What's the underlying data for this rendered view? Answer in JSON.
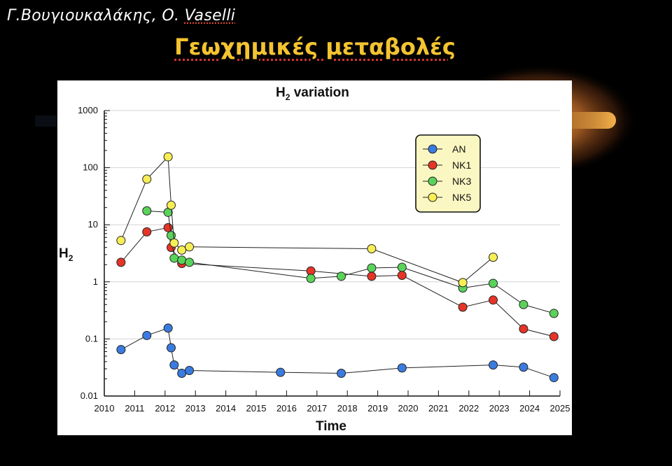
{
  "slide": {
    "author_initial": "Γ.Βουγιουκαλάκης, Ο. ",
    "author_underlined": "Vaselli",
    "title": "Γεωχημικές μεταβολές"
  },
  "colors": {
    "background": "#000000",
    "title": "#f4c430",
    "glow": "#f2a93b"
  },
  "chart_data": {
    "type": "line",
    "title_main": "H",
    "title_sub": "2",
    "title_rest": " variation",
    "xlabel": "Time",
    "ylabel_main": "H",
    "ylabel_sub": "2",
    "xlim": [
      2010,
      2025
    ],
    "ylim": [
      0.01,
      1000
    ],
    "yscale": "log",
    "grid": "horizontal",
    "legend_position": "top-right",
    "x_ticks": [
      "2010",
      "2011",
      "2012",
      "2013",
      "2014",
      "2015",
      "2016",
      "2017",
      "2018",
      "2019",
      "2020",
      "2021",
      "2022",
      "2023",
      "2024",
      "2025"
    ],
    "y_ticks": [
      {
        "value": 1000,
        "label": "1000"
      },
      {
        "value": 100,
        "label": "100"
      },
      {
        "value": 10,
        "label": "10"
      },
      {
        "value": 1,
        "label": "1"
      },
      {
        "value": 0.1,
        "label": "0.1"
      },
      {
        "value": 0.01,
        "label": "0.01"
      }
    ],
    "series": [
      {
        "name": "AN",
        "color": "#3a7be0",
        "x": [
          2010.55,
          2011.4,
          2012.1,
          2012.2,
          2012.3,
          2012.55,
          2012.8,
          2015.8,
          2017.8,
          2019.8,
          2022.8,
          2023.8,
          2024.8
        ],
        "y": [
          0.065,
          0.115,
          0.155,
          0.07,
          0.035,
          0.025,
          0.028,
          0.026,
          0.025,
          0.031,
          0.035,
          0.032,
          0.021
        ]
      },
      {
        "name": "NK1",
        "color": "#e53527",
        "x": [
          2010.55,
          2011.4,
          2012.1,
          2012.2,
          2012.55,
          2016.8,
          2018.8,
          2019.8,
          2021.8,
          2022.8,
          2023.8,
          2024.8
        ],
        "y": [
          2.2,
          7.5,
          8.9,
          4.0,
          2.1,
          1.55,
          1.25,
          1.3,
          0.36,
          0.48,
          0.15,
          0.11
        ]
      },
      {
        "name": "NK3",
        "color": "#5ad35a",
        "x": [
          2011.4,
          2012.1,
          2012.2,
          2012.3,
          2012.55,
          2012.8,
          2016.8,
          2017.8,
          2018.8,
          2019.8,
          2021.8,
          2022.8,
          2023.8,
          2024.8
        ],
        "y": [
          17.5,
          16.5,
          6.5,
          2.6,
          2.4,
          2.2,
          1.15,
          1.25,
          1.75,
          1.8,
          0.78,
          0.94,
          0.4,
          0.28
        ]
      },
      {
        "name": "NK5",
        "color": "#f7ee55",
        "x": [
          2010.55,
          2011.4,
          2012.1,
          2012.2,
          2012.3,
          2012.55,
          2012.8,
          2018.8,
          2021.8,
          2022.8
        ],
        "y": [
          5.3,
          63,
          155,
          22,
          4.8,
          3.6,
          4.1,
          3.8,
          0.97,
          2.7
        ]
      }
    ]
  }
}
